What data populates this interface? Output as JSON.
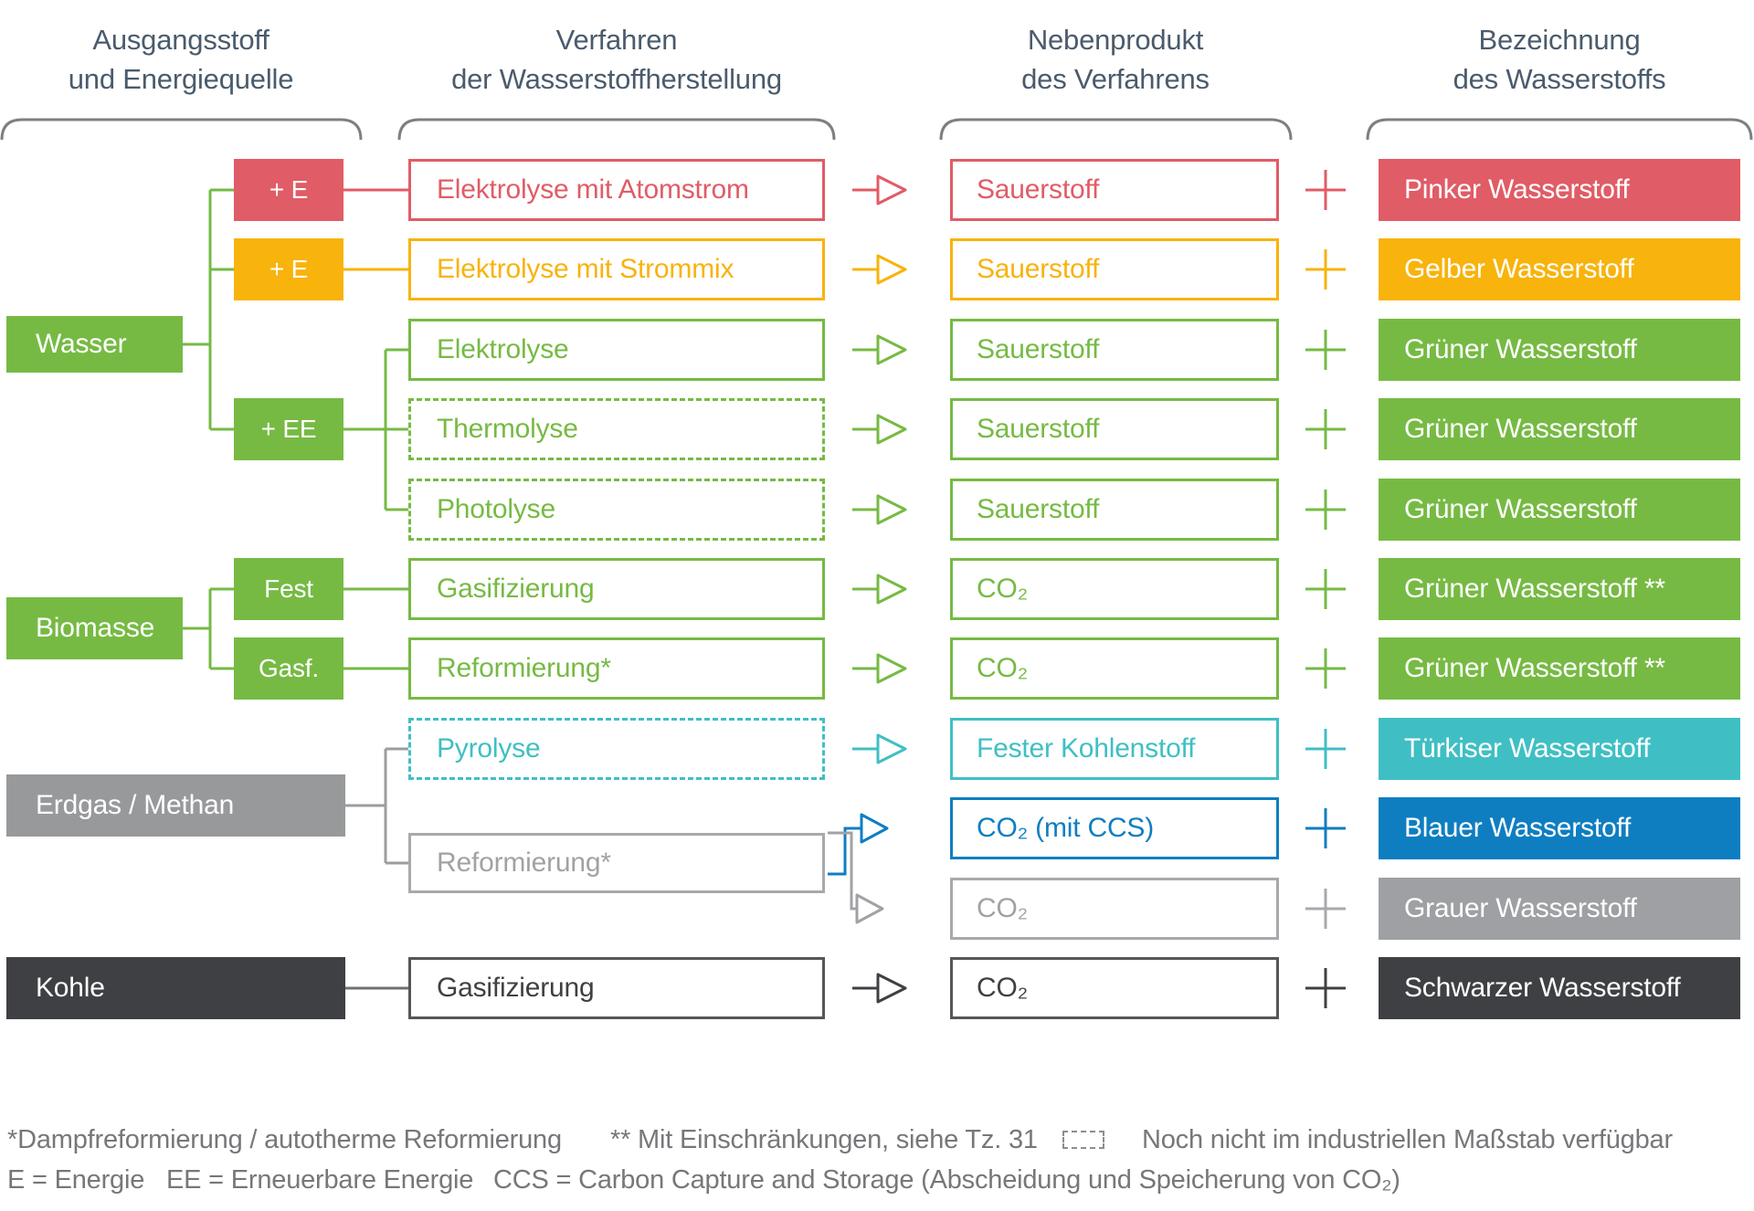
{
  "palette": {
    "red": "#E05C66",
    "yellow": "#F8B30C",
    "green": "#76BA43",
    "teal": "#3FBFC4",
    "blue": "#0E7EC1",
    "gray_fill": "#98999B",
    "gray_light": "#A7A9AC",
    "gray_text": "#A0A2A5",
    "gray_product": "#9EA0A3",
    "dark": "#3F4043",
    "dark_stroke": "#55565A",
    "line_gray": "#9B9DA0",
    "line_dark": "#6F7073",
    "bracket": "#7D7F82",
    "header_text": "#4A5B6C",
    "footer_text": "#76777A"
  },
  "headers": [
    {
      "line1": "Ausgangsstoff",
      "line2": "und Energiequelle"
    },
    {
      "line1": "Verfahren",
      "line2": "der Wasserstoffherstellung"
    },
    {
      "line1": "Nebenprodukt",
      "line2": "des Verfahrens"
    },
    {
      "line1": "Bezeichnung",
      "line2": "des Wasserstoffs"
    }
  ],
  "sources": [
    {
      "label": "Wasser",
      "color": "green"
    },
    {
      "label": "Biomasse",
      "color": "green"
    },
    {
      "label": "Erdgas / Methan",
      "color": "gray_fill"
    },
    {
      "label": "Kohle",
      "color": "dark"
    }
  ],
  "tags": [
    {
      "label": "+ E",
      "color": "red",
      "row": 0
    },
    {
      "label": "+ E",
      "color": "yellow",
      "row": 1
    },
    {
      "label": "+ EE",
      "color": "green",
      "row": 3
    },
    {
      "label": "Fest",
      "color": "green",
      "row": 5
    },
    {
      "label": "Gasf.",
      "color": "green",
      "row": 6
    }
  ],
  "shared_process": {
    "label": "Reformierung*"
  },
  "rows": [
    {
      "process": "Elektrolyse mit Atomstrom",
      "dashed": false,
      "byproduct": "Sauerstoff",
      "product": "Pinker Wasserstoff",
      "color": "red"
    },
    {
      "process": "Elektrolyse mit Strommix",
      "dashed": false,
      "byproduct": "Sauerstoff",
      "product": "Gelber Wasserstoff",
      "color": "yellow"
    },
    {
      "process": "Elektrolyse",
      "dashed": false,
      "byproduct": "Sauerstoff",
      "product": "Grüner Wasserstoff",
      "color": "green"
    },
    {
      "process": "Thermolyse",
      "dashed": true,
      "byproduct": "Sauerstoff",
      "product": "Grüner Wasserstoff",
      "color": "green"
    },
    {
      "process": "Photolyse",
      "dashed": true,
      "byproduct": "Sauerstoff",
      "product": "Grüner Wasserstoff",
      "color": "green"
    },
    {
      "process": "Gasifizierung",
      "dashed": false,
      "byproduct": "CO₂",
      "product": "Grüner Wasserstoff **",
      "color": "green"
    },
    {
      "process": "Reformierung*",
      "dashed": false,
      "byproduct": "CO₂",
      "product": "Grüner Wasserstoff **",
      "color": "green"
    },
    {
      "process": "Pyrolyse",
      "dashed": true,
      "byproduct": "Fester Kohlenstoff",
      "product": "Türkiser Wasserstoff",
      "color": "teal"
    },
    {
      "process": null,
      "dashed": false,
      "byproduct": "CO₂ (mit CCS)",
      "product": "Blauer Wasserstoff",
      "color": "blue"
    },
    {
      "process": null,
      "dashed": false,
      "byproduct": "CO₂",
      "product": "Grauer Wasserstoff",
      "color": "gray"
    },
    {
      "process": "Gasifizierung",
      "dashed": false,
      "byproduct": "CO₂",
      "product": "Schwarzer Wasserstoff",
      "color": "dark"
    }
  ],
  "footnotes": {
    "note_star": "*Dampfreformierung / autotherme Reformierung",
    "note_doublestar": "** Mit Einschränkungen, siehe Tz. 31",
    "note_dashed": "Noch nicht im industriellen Maßstab verfügbar",
    "abbr_e": "E = Energie",
    "abbr_ee": "EE = Erneuerbare Energie",
    "abbr_ccs": "CCS = Carbon Capture and Storage (Abscheidung und Speicherung von CO₂)"
  }
}
